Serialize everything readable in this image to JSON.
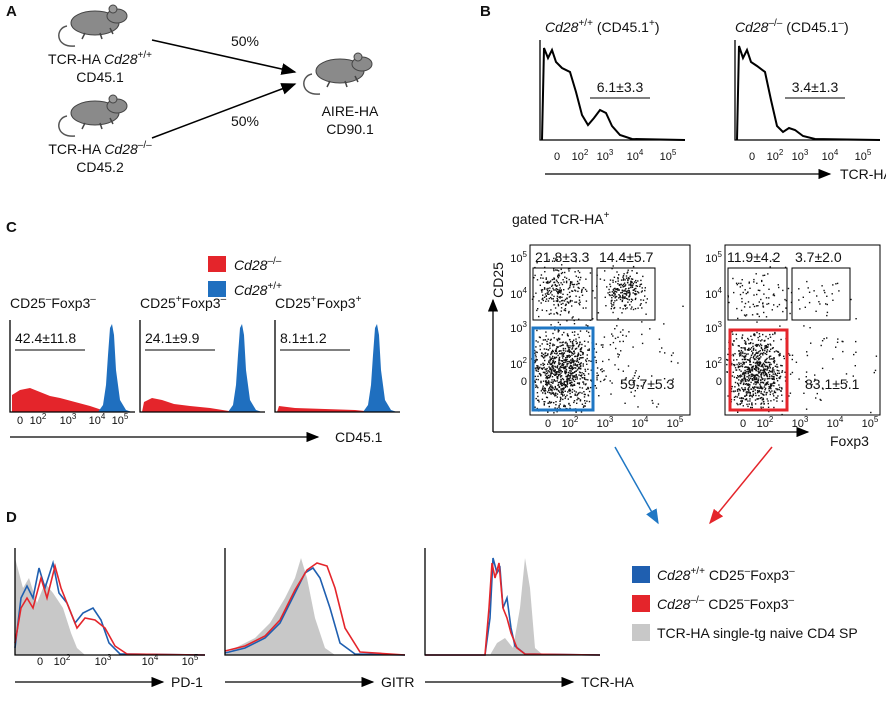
{
  "panel_a": {
    "label": "A",
    "donor_wt": {
      "prefix": "TCR-HA ",
      "gene": "Cd28",
      "sup": "+/+",
      "line2": "CD45.1"
    },
    "donor_ko": {
      "prefix": "TCR-HA ",
      "gene": "Cd28",
      "sup": "–/–",
      "line2": "CD45.2"
    },
    "share_top": "50%",
    "share_bottom": "50%",
    "recipient": {
      "line1": "AIRE-HA",
      "line2": "CD90.1"
    }
  },
  "panel_b": {
    "label": "B",
    "histograms": [
      {
        "gene": "Cd28",
        "sup": "+/+",
        "marker": " (CD45.1",
        "marker_sup": "+",
        "close": ")",
        "gate": "6.1±3.3"
      },
      {
        "gene": "Cd28",
        "sup": "–/–",
        "marker": " (CD45.1",
        "marker_sup": "–",
        "close": ")",
        "gate": "3.4±1.3"
      }
    ],
    "xticks": [
      "0",
      {
        "base": "10",
        "exp": "2"
      },
      {
        "base": "10",
        "exp": "3"
      },
      {
        "base": "10",
        "exp": "4"
      },
      {
        "base": "10",
        "exp": "5"
      }
    ],
    "axis_label": "TCR-HA",
    "gated": {
      "text": "gated TCR-HA",
      "sup": "+"
    },
    "dot_y_label": "CD25",
    "dot_x_label": "Foxp3",
    "dot_yticks": [
      {
        "base": "10",
        "exp": "5"
      },
      {
        "base": "10",
        "exp": "4"
      },
      {
        "base": "10",
        "exp": "3"
      },
      {
        "base": "10",
        "exp": "2"
      },
      "0"
    ],
    "dot_xticks": [
      "0",
      {
        "base": "10",
        "exp": "2"
      },
      {
        "base": "10",
        "exp": "3"
      },
      {
        "base": "10",
        "exp": "4"
      },
      {
        "base": "10",
        "exp": "5"
      }
    ],
    "dot_plots": [
      {
        "top_left": "21.8±3.3",
        "top_right": "14.4±5.7",
        "bottom_right": "59.7±5.3",
        "gate_color": "#1f77c4"
      },
      {
        "top_left": "11.9±4.2",
        "top_right": "3.7±2.0",
        "bottom_right": "83.1±5.1",
        "gate_color": "#e4252b"
      }
    ]
  },
  "panel_c": {
    "label": "C",
    "legend": [
      {
        "gene": "Cd28",
        "sup": "–/–",
        "color": "#e4252b"
      },
      {
        "gene": "Cd28",
        "sup": "+/+",
        "color": "#1f6fbf"
      }
    ],
    "histograms": [
      {
        "m1": "CD25",
        "m1_sup": "–",
        "m2": "Foxp3",
        "m2_sup": "–",
        "gate": "42.4±11.8"
      },
      {
        "m1": "CD25",
        "m1_sup": "+",
        "m2": "Foxp3",
        "m2_sup": "–",
        "gate": "24.1±9.9"
      },
      {
        "m1": "CD25",
        "m1_sup": "+",
        "m2": "Foxp3",
        "m2_sup": "+",
        "gate": "8.1±1.2"
      }
    ],
    "xticks": [
      "0",
      {
        "base": "10",
        "exp": "2"
      },
      {
        "base": "10",
        "exp": "3"
      },
      {
        "base": "10",
        "exp": "4"
      },
      {
        "base": "10",
        "exp": "5"
      }
    ],
    "axis_label": "CD45.1"
  },
  "panel_d": {
    "label": "D",
    "histograms": [
      {
        "axis_label": "PD-1"
      },
      {
        "axis_label": "GITR"
      },
      {
        "axis_label": "TCR-HA"
      }
    ],
    "xticks": [
      "0",
      {
        "base": "10",
        "exp": "2"
      },
      {
        "base": "10",
        "exp": "3"
      },
      {
        "base": "10",
        "exp": "4"
      },
      {
        "base": "10",
        "exp": "5"
      }
    ],
    "legend": [
      {
        "gene": "Cd28",
        "sup": "+/+",
        "m1": " CD25",
        "m1_sup": "–",
        "m2": "Foxp3",
        "m2_sup": "–",
        "color": "#1f5fb0"
      },
      {
        "gene": "Cd28",
        "sup": "–/–",
        "m1": " CD25",
        "m1_sup": "–",
        "m2": "Foxp3",
        "m2_sup": "–",
        "color": "#e4252b"
      },
      {
        "text": "TCR-HA single-tg naive CD4 SP",
        "color": "#c8c8c8"
      }
    ]
  }
}
